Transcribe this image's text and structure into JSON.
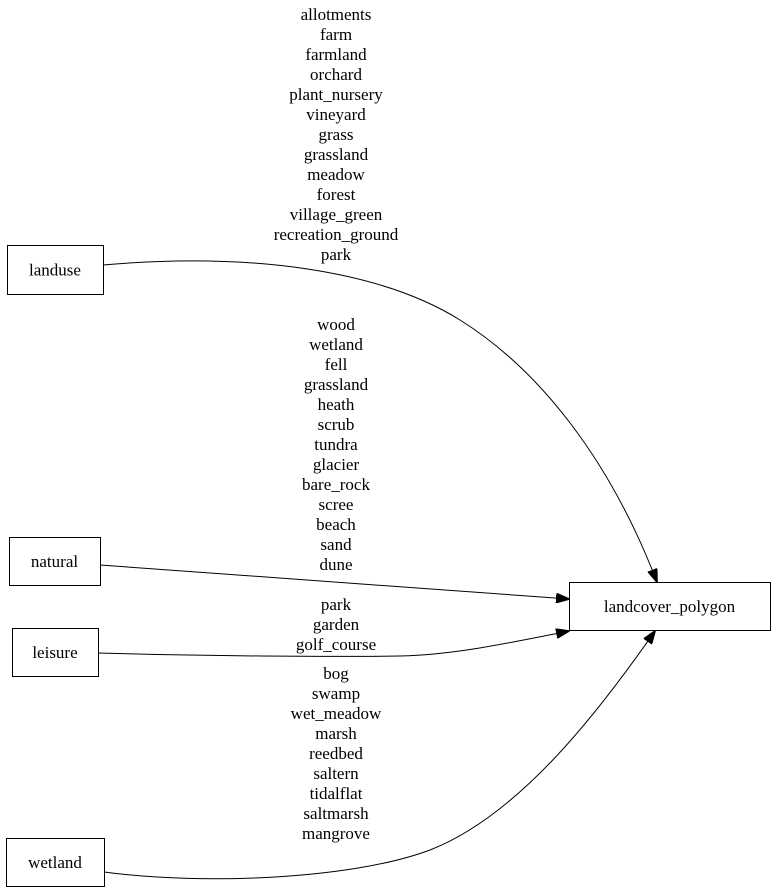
{
  "nodes": [
    {
      "id": "landuse",
      "label": "landuse"
    },
    {
      "id": "natural",
      "label": "natural"
    },
    {
      "id": "leisure",
      "label": "leisure"
    },
    {
      "id": "wetland",
      "label": "wetland"
    },
    {
      "id": "landcover_polygon",
      "label": "landcover_polygon"
    }
  ],
  "edges": [
    {
      "from": "landuse",
      "to": "landcover_polygon",
      "labels": [
        "allotments",
        "farm",
        "farmland",
        "orchard",
        "plant_nursery",
        "vineyard",
        "grass",
        "grassland",
        "meadow",
        "forest",
        "village_green",
        "recreation_ground",
        "park"
      ]
    },
    {
      "from": "natural",
      "to": "landcover_polygon",
      "labels": [
        "wood",
        "wetland",
        "fell",
        "grassland",
        "heath",
        "scrub",
        "tundra",
        "glacier",
        "bare_rock",
        "scree",
        "beach",
        "sand",
        "dune"
      ]
    },
    {
      "from": "leisure",
      "to": "landcover_polygon",
      "labels": [
        "park",
        "garden",
        "golf_course"
      ]
    },
    {
      "from": "wetland",
      "to": "landcover_polygon",
      "labels": [
        "bog",
        "swamp",
        "wet_meadow",
        "marsh",
        "reedbed",
        "saltern",
        "tidalflat",
        "saltmarsh",
        "mangrove"
      ]
    }
  ]
}
